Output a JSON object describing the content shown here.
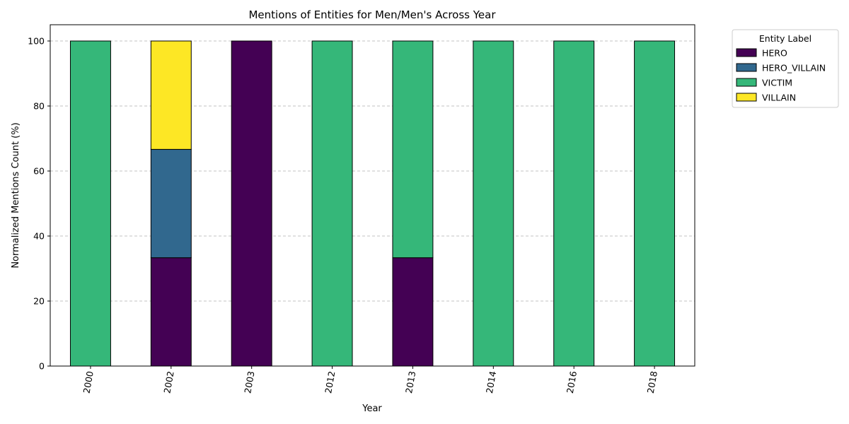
{
  "chart_data": {
    "type": "bar",
    "stacked": true,
    "title": "Mentions of Entities for Men/Men's Across Year",
    "xlabel": "Year",
    "ylabel": "Normalized Mentions Count (%)",
    "categories": [
      "2000",
      "2002",
      "2003",
      "2012",
      "2013",
      "2014",
      "2016",
      "2018"
    ],
    "series": [
      {
        "name": "HERO",
        "color": "#440154",
        "values": [
          0,
          33.33,
          100,
          0,
          33.33,
          0,
          0,
          0
        ]
      },
      {
        "name": "HERO_VILLAIN",
        "color": "#31688e",
        "values": [
          0,
          33.33,
          0,
          0,
          0,
          0,
          0,
          0
        ]
      },
      {
        "name": "VICTIM",
        "color": "#35b779",
        "values": [
          100,
          0,
          0,
          100,
          66.67,
          100,
          100,
          100
        ]
      },
      {
        "name": "VILLAIN",
        "color": "#fde725",
        "values": [
          0,
          33.34,
          0,
          0,
          0,
          0,
          0,
          0
        ]
      }
    ],
    "ylim": [
      0,
      105
    ],
    "yticks": [
      0,
      20,
      40,
      60,
      80,
      100
    ],
    "grid": "y-dashed",
    "legend": {
      "title": "Entity Label",
      "placement": "outside-top-right"
    }
  }
}
